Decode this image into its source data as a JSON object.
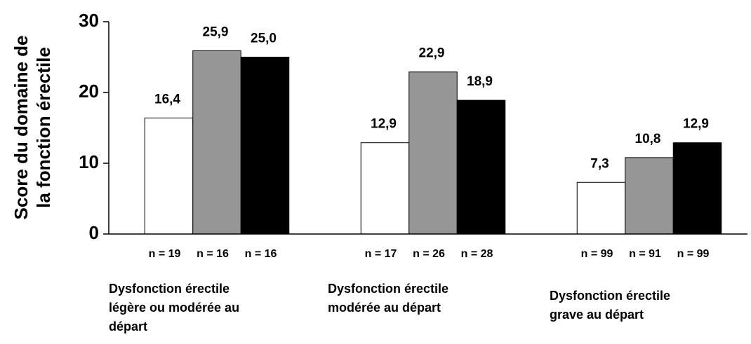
{
  "chart_data": {
    "type": "bar",
    "ylabel": [
      "Score du domaine de",
      "la fonction érectile"
    ],
    "categories": [
      [
        "Dysfonction érectile",
        "légère ou modérée au",
        "départ"
      ],
      [
        "Dysfonction érectile",
        "modérée au départ"
      ],
      [
        "Dysfonction érectile",
        "grave au départ"
      ]
    ],
    "series": [
      {
        "color": "#ffffff",
        "values": [
          16.4,
          12.9,
          7.3
        ],
        "value_labels": [
          "16,4",
          "12,9",
          "7,3"
        ],
        "n_labels": [
          "n = 19",
          "n = 17",
          "n = 99"
        ]
      },
      {
        "color": "#969696",
        "values": [
          25.9,
          22.9,
          10.8
        ],
        "value_labels": [
          "25,9",
          "22,9",
          "10,8"
        ],
        "n_labels": [
          "n = 16",
          "n = 26",
          "n = 91"
        ]
      },
      {
        "color": "#000000",
        "values": [
          25.0,
          18.9,
          12.9
        ],
        "value_labels": [
          "25,0",
          "18,9",
          "12,9"
        ],
        "n_labels": [
          "n = 16",
          "n = 28",
          "n = 99"
        ]
      }
    ],
    "ylim": [
      0,
      30
    ],
    "yticks": [
      0,
      10,
      20,
      30
    ],
    "grid": false
  }
}
